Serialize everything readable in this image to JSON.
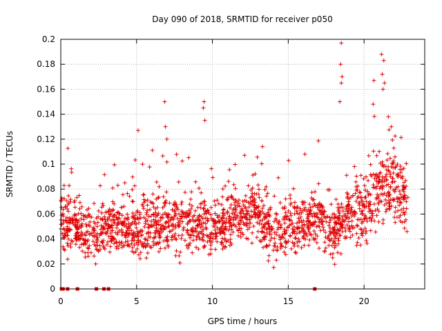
{
  "chart_data": {
    "type": "scatter",
    "title": "Day 090 of 2018, SRMTID for receiver p050",
    "xlabel": "GPS time / hours",
    "ylabel": "SRMTID / TECUs",
    "xlim": [
      0,
      24
    ],
    "ylim": [
      0,
      0.2
    ],
    "xticks": [
      "0",
      "5",
      "10",
      "15",
      "20"
    ],
    "xtick_values": [
      0,
      5,
      10,
      15,
      20
    ],
    "yticks": [
      "0",
      "0.02",
      "0.04",
      "0.06",
      "0.08",
      "0.1",
      "0.12",
      "0.14",
      "0.16",
      "0.18",
      "0.2"
    ],
    "ytick_values": [
      0,
      0.02,
      0.04,
      0.06,
      0.08,
      0.1,
      0.12,
      0.14,
      0.16,
      0.18,
      0.2
    ],
    "grid": true,
    "marker": "+",
    "color": "#e00000",
    "x_range_of_data": [
      0,
      22.9
    ],
    "zero_value_times": [
      0.05,
      0.15,
      0.45,
      1.1,
      2.35,
      2.85,
      3.15,
      16.75
    ],
    "trend": [
      {
        "x": 0.0,
        "y": 0.055
      },
      {
        "x": 1.0,
        "y": 0.05
      },
      {
        "x": 2.0,
        "y": 0.04
      },
      {
        "x": 3.0,
        "y": 0.05
      },
      {
        "x": 4.0,
        "y": 0.05
      },
      {
        "x": 5.0,
        "y": 0.045
      },
      {
        "x": 6.0,
        "y": 0.05
      },
      {
        "x": 7.0,
        "y": 0.055
      },
      {
        "x": 8.0,
        "y": 0.05
      },
      {
        "x": 9.0,
        "y": 0.055
      },
      {
        "x": 10.0,
        "y": 0.05
      },
      {
        "x": 11.0,
        "y": 0.055
      },
      {
        "x": 12.0,
        "y": 0.06
      },
      {
        "x": 13.0,
        "y": 0.06
      },
      {
        "x": 14.0,
        "y": 0.045
      },
      {
        "x": 15.0,
        "y": 0.05
      },
      {
        "x": 16.0,
        "y": 0.055
      },
      {
        "x": 17.0,
        "y": 0.055
      },
      {
        "x": 18.0,
        "y": 0.045
      },
      {
        "x": 19.0,
        "y": 0.06
      },
      {
        "x": 20.0,
        "y": 0.065
      },
      {
        "x": 21.0,
        "y": 0.08
      },
      {
        "x": 22.0,
        "y": 0.085
      },
      {
        "x": 22.9,
        "y": 0.065
      }
    ],
    "spikes": [
      {
        "x": 6.85,
        "y": 0.15
      },
      {
        "x": 6.9,
        "y": 0.13
      },
      {
        "x": 7.0,
        "y": 0.12
      },
      {
        "x": 9.45,
        "y": 0.15
      },
      {
        "x": 9.4,
        "y": 0.145
      },
      {
        "x": 9.5,
        "y": 0.135
      },
      {
        "x": 18.5,
        "y": 0.197
      },
      {
        "x": 18.45,
        "y": 0.18
      },
      {
        "x": 18.55,
        "y": 0.17
      },
      {
        "x": 18.5,
        "y": 0.165
      },
      {
        "x": 18.4,
        "y": 0.15
      },
      {
        "x": 21.15,
        "y": 0.188
      },
      {
        "x": 21.3,
        "y": 0.183
      },
      {
        "x": 21.2,
        "y": 0.172
      },
      {
        "x": 21.35,
        "y": 0.165
      },
      {
        "x": 21.25,
        "y": 0.16
      },
      {
        "x": 20.65,
        "y": 0.167
      },
      {
        "x": 20.6,
        "y": 0.148
      },
      {
        "x": 21.6,
        "y": 0.138
      },
      {
        "x": 21.8,
        "y": 0.13
      },
      {
        "x": 5.1,
        "y": 0.127
      },
      {
        "x": 13.3,
        "y": 0.114
      },
      {
        "x": 16.1,
        "y": 0.108
      }
    ]
  }
}
